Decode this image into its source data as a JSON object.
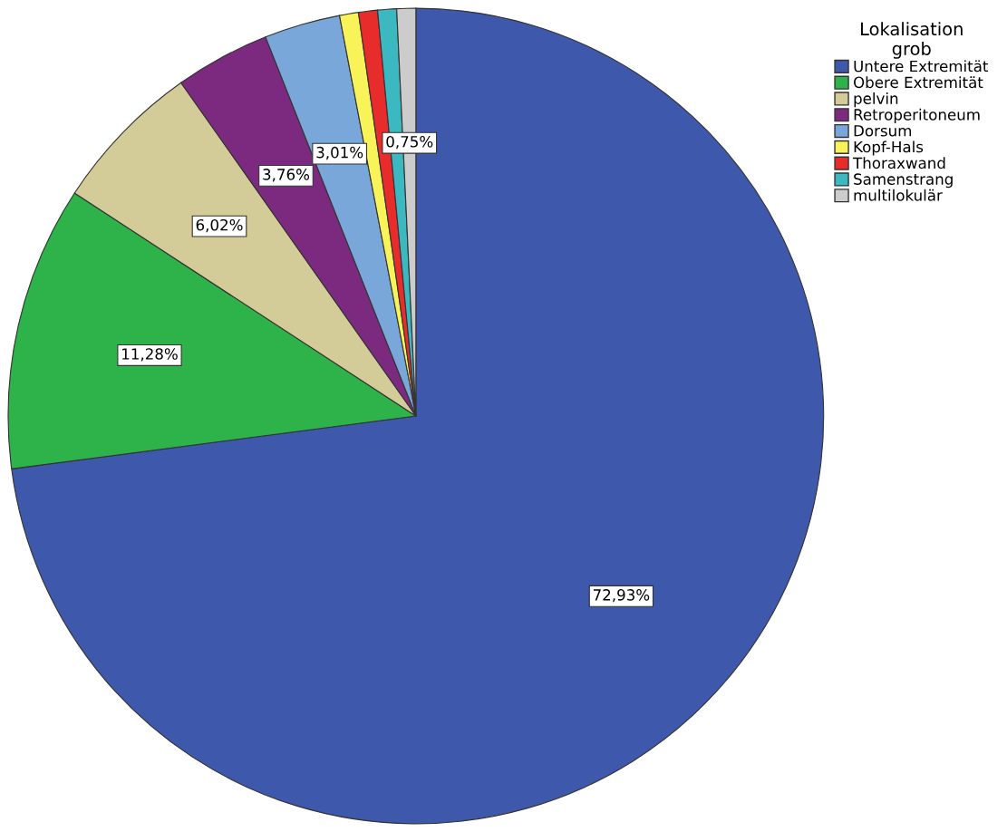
{
  "chart_data": {
    "type": "pie",
    "legend_title": "Lokalisation\ngrob",
    "legend": "top right",
    "categories": [
      "Untere Extremität",
      "Obere Extremität",
      "pelvin",
      "Retroperitoneum",
      "Dorsum",
      "Kopf-Hals",
      "Thoraxwand",
      "Samenstrang",
      "multilokulär"
    ],
    "values": [
      72.93,
      11.28,
      6.02,
      3.76,
      3.01,
      0.75,
      0.75,
      0.75,
      0.75
    ],
    "value_labels": [
      "72,93%",
      "11,28%",
      "6,02%",
      "3,76%",
      "3,01%",
      null,
      null,
      null,
      "0,75%"
    ],
    "colors": [
      "#3e58ac",
      "#2db34a",
      "#d4cc98",
      "#7b2a80",
      "#7aa7d9",
      "#f9f35a",
      "#e82c2c",
      "#3cb8c0",
      "#cccccc"
    ]
  }
}
